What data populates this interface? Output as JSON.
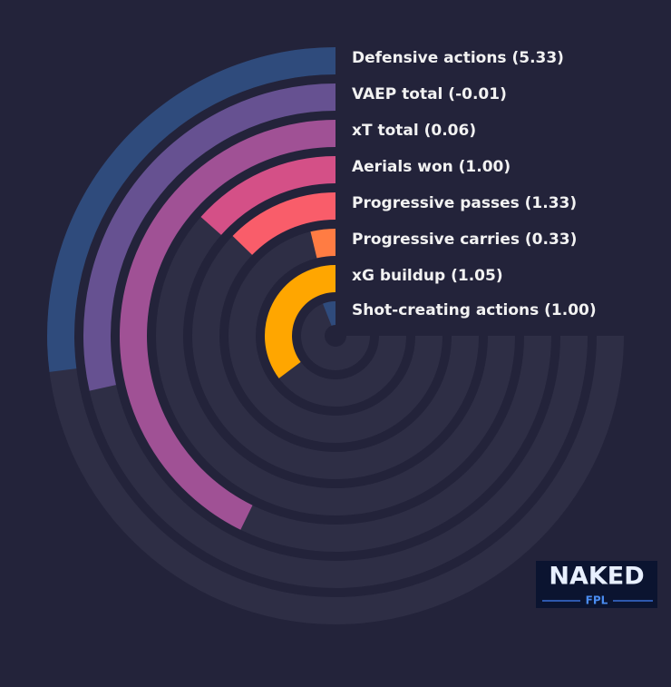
{
  "chart_data": {
    "type": "radial-bar",
    "categories": [
      "Defensive actions (5.33)",
      "VAEP total (-0.01)",
      "xT total (0.06)",
      "Aerials won (1.00)",
      "Progressive passes (1.33)",
      "Progressive carries (0.33)",
      "xG buildup (1.05)",
      "Shot-creating actions (1.00)"
    ],
    "values": [
      36,
      38,
      57,
      18,
      17,
      5,
      47,
      8
    ],
    "colors": [
      "#2f4b7c",
      "#665191",
      "#a05195",
      "#d45087",
      "#f95d6a",
      "#ff7c43",
      "#ffa600",
      "#2f4b7c"
    ],
    "ylim": [
      0,
      100
    ]
  },
  "logo": {
    "text": "NAKED",
    "subtext": "FPL"
  }
}
